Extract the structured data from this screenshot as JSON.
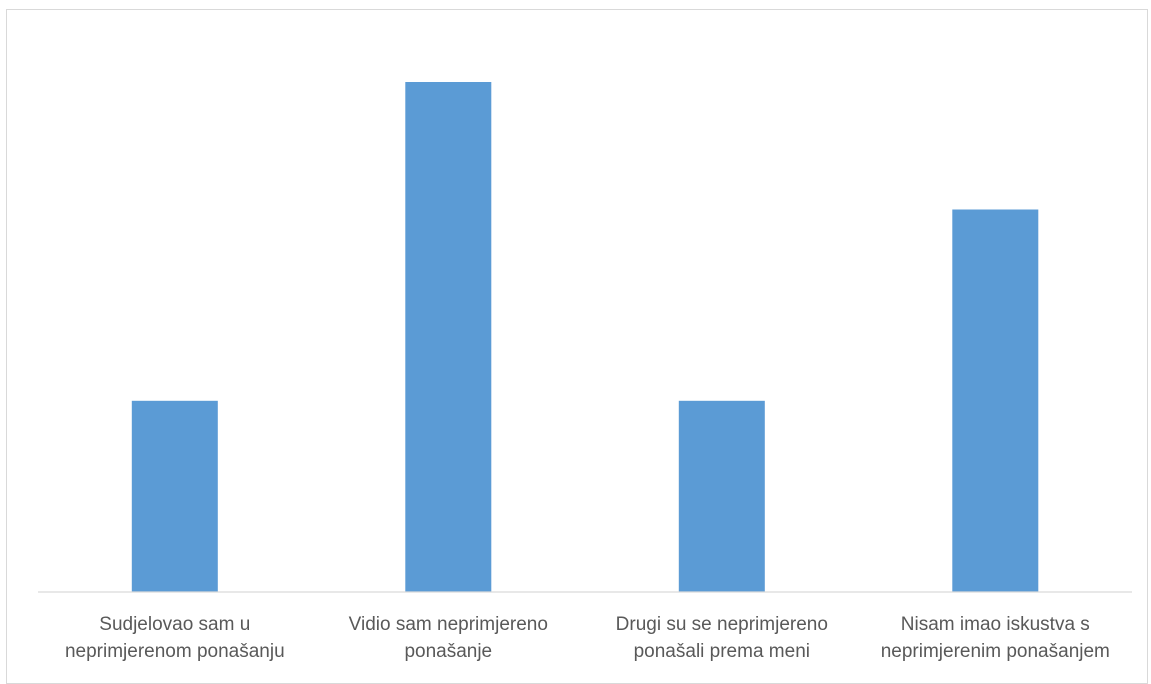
{
  "chart_data": {
    "type": "bar",
    "title": "",
    "xlabel": "",
    "ylabel": "",
    "categories": [
      [
        "Sudjelovao sam u",
        "neprimjerenom ponašanju"
      ],
      [
        "Vidio sam neprimjereno",
        "ponašanje"
      ],
      [
        "Drugi su se neprimjereno",
        "ponašali prema meni"
      ],
      [
        "Nisam imao iskustva s",
        "neprimjerenim ponašanjem"
      ]
    ],
    "values": [
      3.0,
      8.0,
      3.0,
      6.0
    ],
    "ylim": [
      0,
      8.8
    ],
    "grid": false,
    "legend": "none",
    "colors": {
      "bar": "#5b9bd5",
      "axis": "#d9d9d9",
      "text": "#595959"
    }
  }
}
